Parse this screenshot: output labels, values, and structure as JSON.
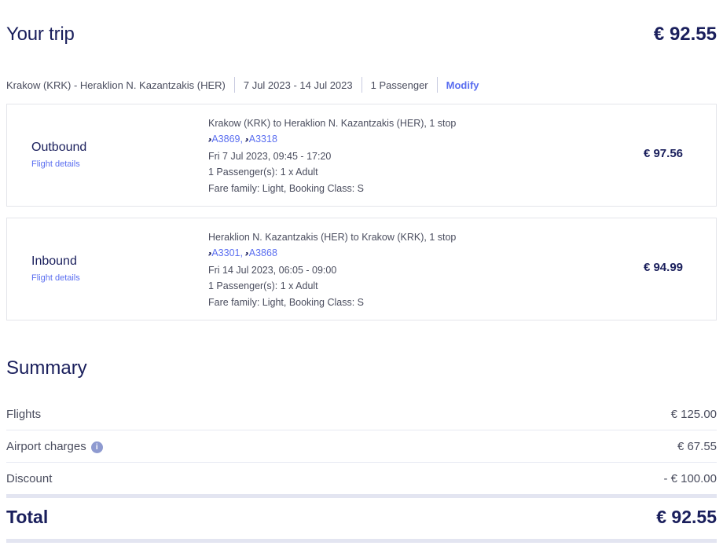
{
  "header": {
    "title": "Your trip",
    "price": "€ 92.55"
  },
  "trip_bar": {
    "route": "Krakow (KRK) - Heraklion N. Kazantzakis (HER)",
    "dates": "7 Jul 2023 - 14 Jul 2023",
    "passengers": "1 Passenger",
    "modify": "Modify"
  },
  "flights": [
    {
      "label": "Outbound",
      "details_link": "Flight details",
      "route": "Krakow (KRK) to Heraklion N. Kazantzakis (HER), 1 stop",
      "flight_numbers": [
        "A3869,",
        "A3318"
      ],
      "datetime": "Fri 7 Jul 2023, 09:45 - 17:20",
      "passengers": "1 Passenger(s): 1 x Adult",
      "fare": "Fare family: Light, Booking Class: S",
      "price": "€ 97.56"
    },
    {
      "label": "Inbound",
      "details_link": "Flight details",
      "route": "Heraklion N. Kazantzakis (HER) to Krakow (KRK), 1 stop",
      "flight_numbers": [
        "A3301,",
        "A3868"
      ],
      "datetime": "Fri 14 Jul 2023, 06:05 - 09:00",
      "passengers": "1 Passenger(s): 1 x Adult",
      "fare": "Fare family: Light, Booking Class: S",
      "price": "€ 94.99"
    }
  ],
  "summary": {
    "title": "Summary",
    "rows": [
      {
        "label": "Flights",
        "value": "€ 125.00"
      },
      {
        "label": "Airport charges",
        "value": "€ 67.55",
        "info_icon": "i"
      },
      {
        "label": "Discount",
        "value": "- € 100.00"
      }
    ],
    "total_label": "Total",
    "total_value": "€ 92.55"
  },
  "colors": {
    "brand": "#1a1f5c",
    "link": "#5a6ef0"
  }
}
